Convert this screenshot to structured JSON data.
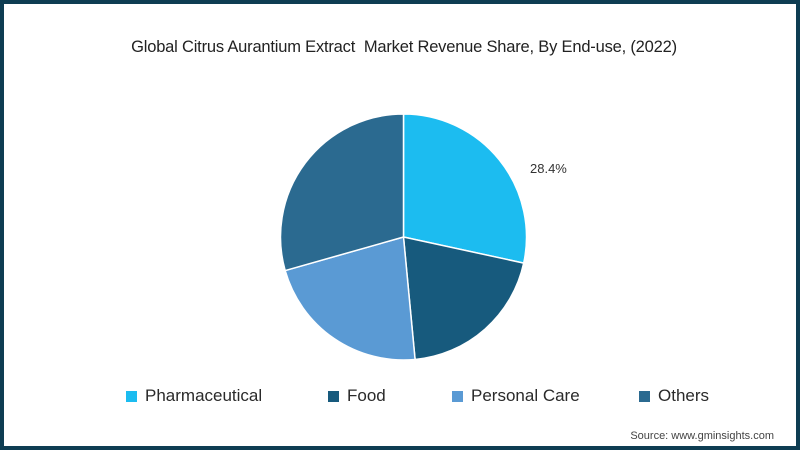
{
  "chart_data": {
    "type": "pie",
    "title": "Global Citrus Aurantium Extract  Market Revenue Share, By End-use, (2022)",
    "categories": [
      "Pharmaceutical",
      "Food",
      "Personal Care",
      "Others"
    ],
    "values": [
      28.4,
      20.1,
      22.1,
      29.4
    ],
    "unit": "%",
    "colors": [
      "#1cbcf0",
      "#175a7d",
      "#5a9ad4",
      "#2b6a90"
    ],
    "data_labels": [
      {
        "category": "Pharmaceutical",
        "text": "28.4%"
      }
    ],
    "start_angle_deg": 0,
    "direction": "clockwise",
    "legend_position": "bottom",
    "source": "Source: www.gminsights.com"
  },
  "title": "Global Citrus Aurantium Extract  Market Revenue Share, By End-use, (2022)",
  "data_label": "28.4%",
  "legend": {
    "items": [
      {
        "label": "Pharmaceutical",
        "color": "#1cbcf0"
      },
      {
        "label": "Food",
        "color": "#175a7d"
      },
      {
        "label": "Personal Care",
        "color": "#5a9ad4"
      },
      {
        "label": "Others",
        "color": "#2b6a90"
      }
    ]
  },
  "source": "Source: www.gminsights.com",
  "theme": {
    "border_color": "#0e3d52"
  }
}
